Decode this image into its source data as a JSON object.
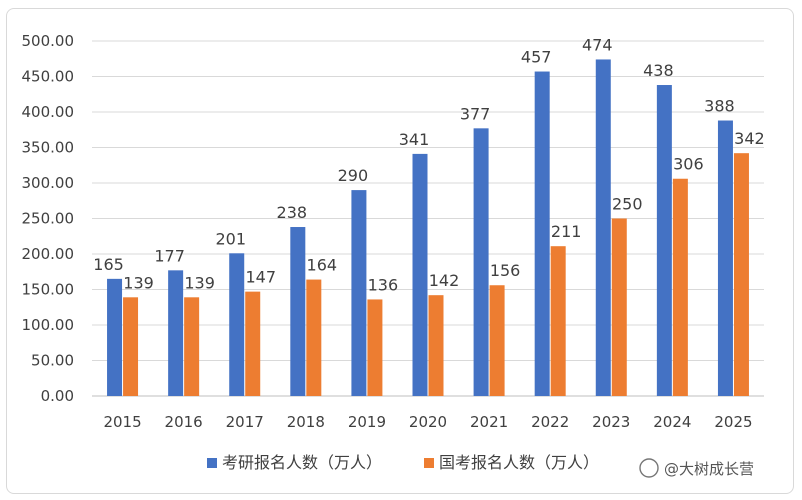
{
  "chart_data": {
    "type": "bar",
    "categories": [
      "2015",
      "2016",
      "2017",
      "2018",
      "2019",
      "2020",
      "2021",
      "2022",
      "2023",
      "2024",
      "2025"
    ],
    "series": [
      {
        "name": "考研报名人数（万人）",
        "color": "#4472c4",
        "values": [
          165,
          177,
          201,
          238,
          290,
          341,
          377,
          457,
          474,
          438,
          388
        ]
      },
      {
        "name": "国考报名人数（万人）",
        "color": "#ed7d31",
        "values": [
          139,
          139,
          147,
          164,
          136,
          142,
          156,
          211,
          250,
          306,
          342
        ]
      }
    ],
    "ylim": [
      0,
      500
    ],
    "yticks": [
      "0.00",
      "50.00",
      "100.00",
      "150.00",
      "200.00",
      "250.00",
      "300.00",
      "350.00",
      "400.00",
      "450.00",
      "500.00"
    ],
    "grid": true,
    "legend_position": "bottom"
  },
  "watermark": {
    "text": "@大树成长营"
  }
}
